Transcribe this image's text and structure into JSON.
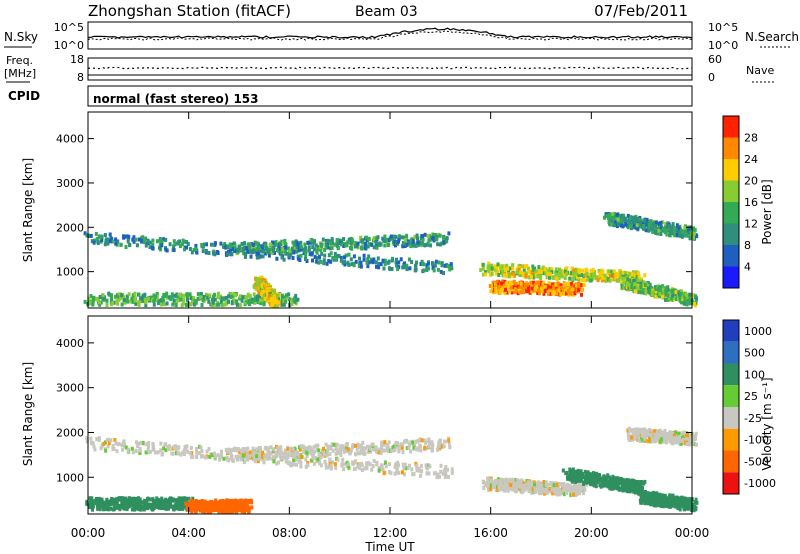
{
  "header": {
    "station": "Zhongshan Station (fitACF)",
    "beam": "Beam 03",
    "date": "07/Feb/2011"
  },
  "status_panels": {
    "nsky_label": "N.Sky",
    "nsky_tick_top": "10^5",
    "nsky_tick_bottom": "10^0",
    "nsearch_label": "N.Search",
    "nsearch_tick_top": "10^5",
    "nsearch_tick_bottom": "10^0",
    "freq_label": "Freq.",
    "freq_unit": "[MHz]",
    "freq_tick_top": "18",
    "freq_tick_bottom": "8",
    "nave_label": "Nave",
    "nave_tick_top": "60",
    "nave_tick_bottom": "0",
    "cpid_label": "CPID",
    "cpid_text": "normal (fast stereo) 153"
  },
  "chart_data": [
    {
      "type": "heatmap",
      "quantity": "Power",
      "ylabel": "Slant Range [km]",
      "ylim": [
        180,
        4600
      ],
      "yticks": [
        "1000",
        "2000",
        "3000",
        "4000"
      ],
      "xticks": [
        "00:00",
        "04:00",
        "08:00",
        "12:00",
        "16:00",
        "20:00",
        "00:00"
      ],
      "colorbar_label": "Power [dB]",
      "colorbar_ticks": [
        "4",
        "8",
        "12",
        "16",
        "20",
        "24",
        "28"
      ],
      "colors": [
        "#1a1aff",
        "#1f5fbf",
        "#2f8f7f",
        "#33aa55",
        "#88cc33",
        "#ffcc00",
        "#ff8800",
        "#ff2200"
      ],
      "features": [
        {
          "x": [
            0.0,
            14.3
          ],
          "y": [
            1800,
            1120
          ],
          "intensity": 0.3
        },
        {
          "x": [
            5.6,
            14.2
          ],
          "y": [
            1550,
            1780
          ],
          "intensity": 0.35
        },
        {
          "x": [
            0.0,
            8.2
          ],
          "y": [
            420,
            420
          ],
          "intensity": 0.45
        },
        {
          "x": [
            6.7,
            7.4
          ],
          "y": [
            800,
            380
          ],
          "intensity": 0.65
        },
        {
          "x": [
            15.7,
            21.9
          ],
          "y": [
            1100,
            900
          ],
          "intensity": 0.6
        },
        {
          "x": [
            16.0,
            19.5
          ],
          "y": [
            700,
            650
          ],
          "intensity": 0.8
        },
        {
          "x": [
            20.6,
            24.0
          ],
          "y": [
            2250,
            1900
          ],
          "intensity": 0.35
        },
        {
          "x": [
            21.2,
            24.0
          ],
          "y": [
            800,
            400
          ],
          "intensity": 0.5
        }
      ]
    },
    {
      "type": "heatmap",
      "quantity": "Velocity",
      "ylabel": "Slant Range [km]",
      "ylim": [
        180,
        4600
      ],
      "yticks": [
        "1000",
        "2000",
        "3000",
        "4000"
      ],
      "xticks": [
        "00:00",
        "04:00",
        "08:00",
        "12:00",
        "16:00",
        "20:00",
        "00:00"
      ],
      "xlabel": "Time UT",
      "colorbar_label": "Velocity [m s⁻¹]",
      "colorbar_ticks": [
        "1000",
        "500",
        "100",
        "25",
        "-25",
        "-100",
        "-500",
        "-1000"
      ],
      "colors": [
        "#1f3fbf",
        "#2f6fbf",
        "#2f8f5f",
        "#66cc33",
        "#c8c8c0",
        "#ff9900",
        "#ff6600",
        "#ee1111"
      ],
      "features": [
        {
          "x": [
            0.0,
            14.3
          ],
          "y": [
            1800,
            1150
          ],
          "velocity": 0
        },
        {
          "x": [
            5.6,
            14.2
          ],
          "y": [
            1550,
            1780
          ],
          "velocity": 0
        },
        {
          "x": [
            0.0,
            4.0
          ],
          "y": [
            450,
            450
          ],
          "velocity": 120
        },
        {
          "x": [
            4.0,
            6.3
          ],
          "y": [
            400,
            400
          ],
          "velocity": -150
        },
        {
          "x": [
            15.8,
            19.6
          ],
          "y": [
            900,
            750
          ],
          "velocity": 0
        },
        {
          "x": [
            19.0,
            22.0
          ],
          "y": [
            1100,
            800
          ],
          "velocity": 120
        },
        {
          "x": [
            21.5,
            24.0
          ],
          "y": [
            2000,
            1900
          ],
          "velocity": 0
        },
        {
          "x": [
            22.0,
            24.0
          ],
          "y": [
            600,
            420
          ],
          "velocity": 120
        }
      ]
    }
  ]
}
